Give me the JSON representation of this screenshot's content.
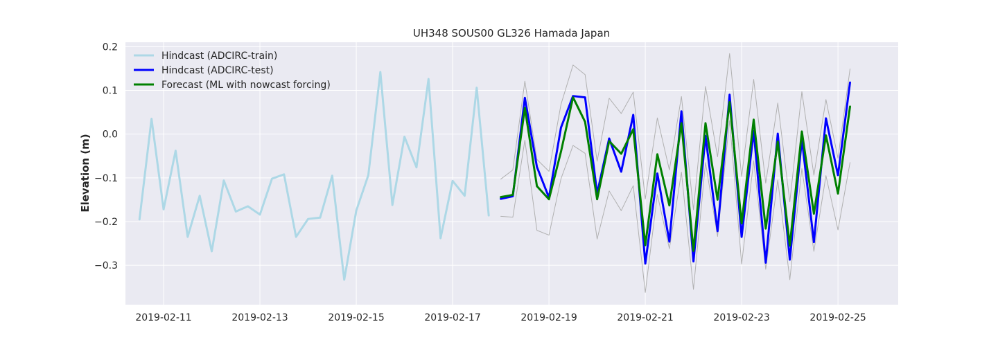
{
  "chart_data": {
    "type": "line",
    "title": "UH348 SOUS00 GL326 Hamada Japan",
    "xlabel": "",
    "ylabel": "Elevation (m)",
    "x_unit": "days",
    "xlim": [
      "2019-02-10T05:00",
      "2019-02-26T06:00"
    ],
    "ylim": [
      -0.39,
      0.21
    ],
    "xticks": [
      {
        "value": "2019-02-11",
        "label": "2019-02-11"
      },
      {
        "value": "2019-02-13",
        "label": "2019-02-13"
      },
      {
        "value": "2019-02-15",
        "label": "2019-02-15"
      },
      {
        "value": "2019-02-17",
        "label": "2019-02-17"
      },
      {
        "value": "2019-02-19",
        "label": "2019-02-19"
      },
      {
        "value": "2019-02-21",
        "label": "2019-02-21"
      },
      {
        "value": "2019-02-23",
        "label": "2019-02-23"
      },
      {
        "value": "2019-02-25",
        "label": "2019-02-25"
      }
    ],
    "yticks": [
      {
        "value": 0.2,
        "label": "0.2"
      },
      {
        "value": 0.1,
        "label": "0.1"
      },
      {
        "value": 0.0,
        "label": "0.0"
      },
      {
        "value": -0.1,
        "label": "−0.1"
      },
      {
        "value": -0.2,
        "label": "−0.2"
      },
      {
        "value": -0.3,
        "label": "−0.3"
      }
    ],
    "grid": true,
    "legend_position": "top-left",
    "background_color": "#eaeaf2",
    "series": [
      {
        "name": "Hindcast (ADCIRC-train)",
        "color": "#add8e6",
        "linewidth": 3,
        "in_legend": true,
        "x": [
          "2019-02-10T12:00",
          "2019-02-10T18:00",
          "2019-02-11T00:00",
          "2019-02-11T06:00",
          "2019-02-11T12:00",
          "2019-02-11T18:00",
          "2019-02-12T00:00",
          "2019-02-12T06:00",
          "2019-02-12T12:00",
          "2019-02-12T18:00",
          "2019-02-13T00:00",
          "2019-02-13T06:00",
          "2019-02-13T12:00",
          "2019-02-13T18:00",
          "2019-02-14T00:00",
          "2019-02-14T06:00",
          "2019-02-14T12:00",
          "2019-02-14T18:00",
          "2019-02-15T00:00",
          "2019-02-15T06:00",
          "2019-02-15T12:00",
          "2019-02-15T18:00",
          "2019-02-16T00:00",
          "2019-02-16T06:00",
          "2019-02-16T12:00",
          "2019-02-16T18:00",
          "2019-02-17T00:00",
          "2019-02-17T06:00",
          "2019-02-17T12:00",
          "2019-02-17T18:00"
        ],
        "y": [
          -0.195,
          0.035,
          -0.172,
          -0.038,
          -0.235,
          -0.141,
          -0.268,
          -0.106,
          -0.177,
          -0.165,
          -0.184,
          -0.102,
          -0.092,
          -0.235,
          -0.194,
          -0.191,
          -0.095,
          -0.333,
          -0.175,
          -0.094,
          0.142,
          -0.162,
          -0.006,
          -0.076,
          0.126,
          -0.238,
          -0.107,
          -0.141,
          0.106,
          -0.186
        ]
      },
      {
        "name": "Upper bound",
        "color": "#b0b0b0",
        "linewidth": 1,
        "in_legend": false,
        "x": [
          "2019-02-18T00:00",
          "2019-02-18T06:00",
          "2019-02-18T12:00",
          "2019-02-18T18:00",
          "2019-02-19T00:00",
          "2019-02-19T06:00",
          "2019-02-19T12:00",
          "2019-02-19T18:00",
          "2019-02-20T00:00",
          "2019-02-20T06:00",
          "2019-02-20T12:00",
          "2019-02-20T18:00",
          "2019-02-21T00:00",
          "2019-02-21T06:00",
          "2019-02-21T12:00",
          "2019-02-21T18:00",
          "2019-02-22T00:00",
          "2019-02-22T06:00",
          "2019-02-22T12:00",
          "2019-02-22T18:00",
          "2019-02-23T00:00",
          "2019-02-23T06:00",
          "2019-02-23T12:00",
          "2019-02-23T18:00",
          "2019-02-24T00:00",
          "2019-02-24T06:00",
          "2019-02-24T12:00",
          "2019-02-24T18:00",
          "2019-02-25T00:00",
          "2019-02-25T06:00"
        ],
        "y": [
          -0.103,
          -0.082,
          0.121,
          -0.058,
          -0.085,
          0.068,
          0.158,
          0.136,
          -0.062,
          0.082,
          0.047,
          0.096,
          -0.148,
          0.037,
          -0.082,
          0.086,
          -0.173,
          0.109,
          -0.052,
          0.184,
          -0.097,
          0.125,
          -0.112,
          0.071,
          -0.155,
          0.097,
          -0.094,
          0.079,
          -0.055,
          0.149
        ]
      },
      {
        "name": "Lower bound",
        "color": "#b0b0b0",
        "linewidth": 1,
        "in_legend": false,
        "x": [
          "2019-02-18T00:00",
          "2019-02-18T06:00",
          "2019-02-18T12:00",
          "2019-02-18T18:00",
          "2019-02-19T00:00",
          "2019-02-19T06:00",
          "2019-02-19T12:00",
          "2019-02-19T18:00",
          "2019-02-20T00:00",
          "2019-02-20T06:00",
          "2019-02-20T12:00",
          "2019-02-20T18:00",
          "2019-02-21T00:00",
          "2019-02-21T06:00",
          "2019-02-21T12:00",
          "2019-02-21T18:00",
          "2019-02-22T00:00",
          "2019-02-22T06:00",
          "2019-02-22T12:00",
          "2019-02-22T18:00",
          "2019-02-23T00:00",
          "2019-02-23T06:00",
          "2019-02-23T12:00",
          "2019-02-23T18:00",
          "2019-02-24T00:00",
          "2019-02-24T06:00",
          "2019-02-24T12:00",
          "2019-02-24T18:00",
          "2019-02-25T00:00",
          "2019-02-25T06:00"
        ],
        "y": [
          -0.188,
          -0.19,
          -0.014,
          -0.22,
          -0.231,
          -0.102,
          -0.026,
          -0.044,
          -0.24,
          -0.13,
          -0.175,
          -0.118,
          -0.362,
          -0.138,
          -0.262,
          -0.087,
          -0.355,
          -0.065,
          -0.234,
          0.031,
          -0.297,
          -0.061,
          -0.309,
          -0.105,
          -0.333,
          -0.079,
          -0.268,
          -0.095,
          -0.219,
          -0.065
        ]
      },
      {
        "name": "Hindcast (ADCIRC-test)",
        "color": "#0000ff",
        "linewidth": 3,
        "in_legend": true,
        "x": [
          "2019-02-18T00:00",
          "2019-02-18T06:00",
          "2019-02-18T12:00",
          "2019-02-18T18:00",
          "2019-02-19T00:00",
          "2019-02-19T06:00",
          "2019-02-19T12:00",
          "2019-02-19T18:00",
          "2019-02-20T00:00",
          "2019-02-20T06:00",
          "2019-02-20T12:00",
          "2019-02-20T18:00",
          "2019-02-21T00:00",
          "2019-02-21T06:00",
          "2019-02-21T12:00",
          "2019-02-21T18:00",
          "2019-02-22T00:00",
          "2019-02-22T06:00",
          "2019-02-22T12:00",
          "2019-02-22T18:00",
          "2019-02-23T00:00",
          "2019-02-23T06:00",
          "2019-02-23T12:00",
          "2019-02-23T18:00",
          "2019-02-24T00:00",
          "2019-02-24T06:00",
          "2019-02-24T12:00",
          "2019-02-24T18:00",
          "2019-02-25T00:00",
          "2019-02-25T06:00"
        ],
        "y": [
          -0.148,
          -0.142,
          0.083,
          -0.075,
          -0.145,
          0.015,
          0.087,
          0.084,
          -0.136,
          -0.01,
          -0.086,
          0.044,
          -0.296,
          -0.09,
          -0.246,
          0.052,
          -0.291,
          -0.004,
          -0.222,
          0.09,
          -0.235,
          0.007,
          -0.294,
          0.001,
          -0.287,
          -0.012,
          -0.247,
          0.036,
          -0.094,
          0.118
        ]
      },
      {
        "name": "Forecast (ML with nowcast forcing)",
        "color": "#008000",
        "linewidth": 3,
        "in_legend": true,
        "x": [
          "2019-02-18T00:00",
          "2019-02-18T06:00",
          "2019-02-18T12:00",
          "2019-02-18T18:00",
          "2019-02-19T00:00",
          "2019-02-19T06:00",
          "2019-02-19T12:00",
          "2019-02-19T18:00",
          "2019-02-20T00:00",
          "2019-02-20T06:00",
          "2019-02-20T12:00",
          "2019-02-20T18:00",
          "2019-02-21T00:00",
          "2019-02-21T06:00",
          "2019-02-21T12:00",
          "2019-02-21T18:00",
          "2019-02-22T00:00",
          "2019-02-22T06:00",
          "2019-02-22T12:00",
          "2019-02-22T18:00",
          "2019-02-23T00:00",
          "2019-02-23T06:00",
          "2019-02-23T12:00",
          "2019-02-23T18:00",
          "2019-02-24T00:00",
          "2019-02-24T06:00",
          "2019-02-24T12:00",
          "2019-02-24T18:00",
          "2019-02-25T00:00",
          "2019-02-25T06:00"
        ],
        "y": [
          -0.144,
          -0.139,
          0.06,
          -0.119,
          -0.149,
          -0.04,
          0.084,
          0.028,
          -0.149,
          -0.016,
          -0.045,
          0.011,
          -0.254,
          -0.046,
          -0.163,
          0.025,
          -0.267,
          0.025,
          -0.15,
          0.073,
          -0.204,
          0.033,
          -0.216,
          -0.017,
          -0.255,
          0.006,
          -0.182,
          -0.003,
          -0.136,
          0.063
        ]
      }
    ]
  }
}
